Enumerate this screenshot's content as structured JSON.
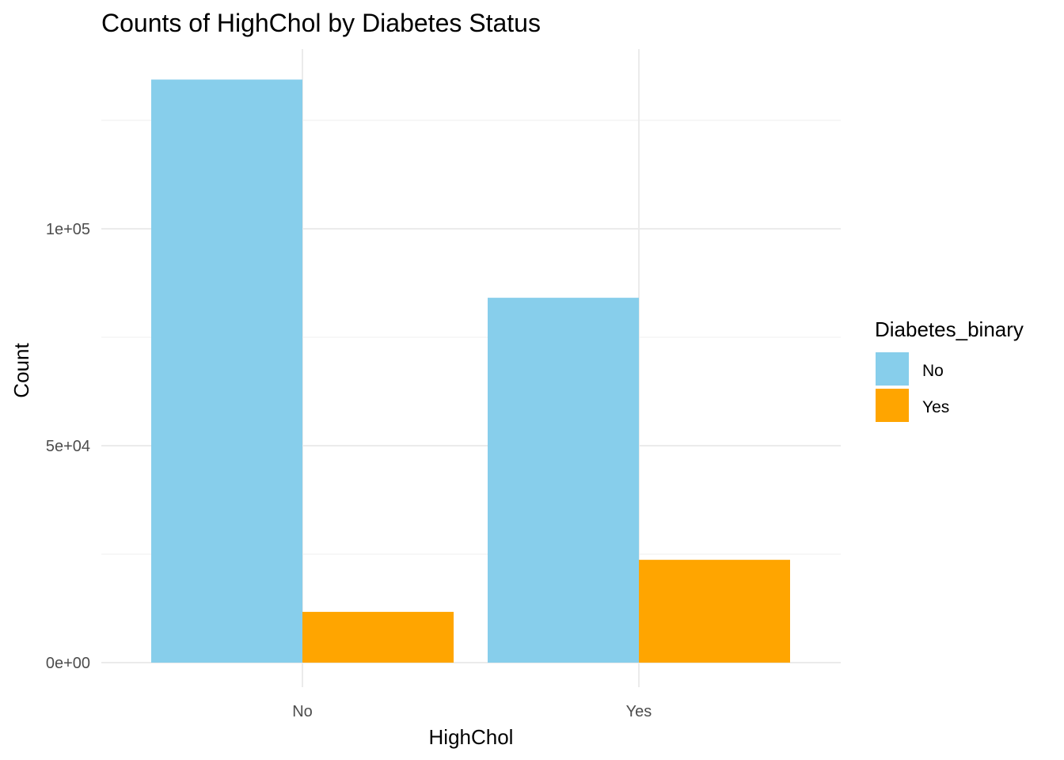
{
  "chart_data": {
    "type": "bar",
    "title": "Counts of HighChol by Diabetes Status",
    "xlabel": "HighChol",
    "ylabel": "Count",
    "categories": [
      "No",
      "Yes"
    ],
    "series": [
      {
        "name": "No",
        "values": [
          134400,
          84100
        ],
        "color": "#87CEEB"
      },
      {
        "name": "Yes",
        "values": [
          11700,
          23700
        ],
        "color": "#FFA500"
      }
    ],
    "ylim": [
      0,
      140000
    ],
    "y_ticks": [
      0,
      50000,
      100000
    ],
    "y_tick_labels": [
      "0e+00",
      "5e+04",
      "1e+05"
    ],
    "legend": {
      "title": "Diabetes_binary",
      "position": "right",
      "labels": [
        "No",
        "Yes"
      ]
    },
    "grid": true
  }
}
